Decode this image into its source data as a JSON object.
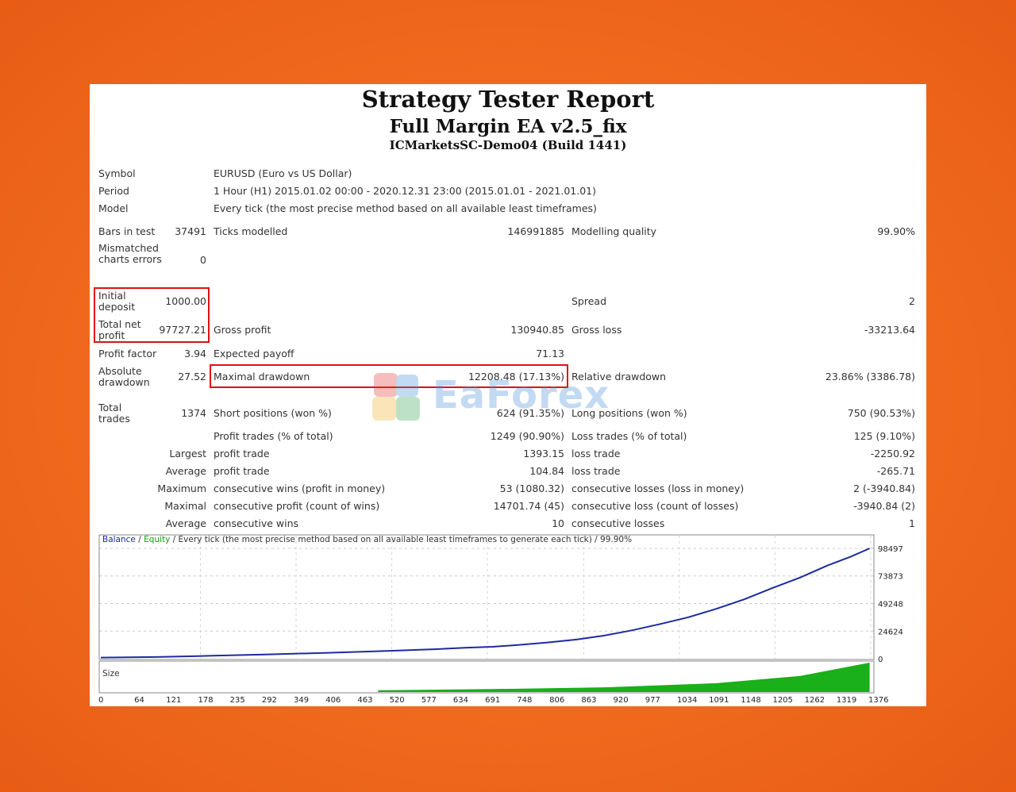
{
  "report": {
    "title": "Strategy Tester Report",
    "ea_name": "Full Margin EA v2.5_fix",
    "server": "ICMarketsSC-Demo04 (Build 1441)"
  },
  "info": {
    "symbol_label": "Symbol",
    "symbol_value": "EURUSD (Euro vs US Dollar)",
    "period_label": "Period",
    "period_value": "1 Hour (H1) 2015.01.02 00:00 - 2020.12.31 23:00 (2015.01.01 - 2021.01.01)",
    "model_label": "Model",
    "model_value": "Every tick (the most precise method based on all available least timeframes)"
  },
  "stats": {
    "bars_label": "Bars in test",
    "bars_value": "37491",
    "ticks_label": "Ticks modelled",
    "ticks_value": "146991885",
    "quality_label": "Modelling quality",
    "quality_value": "99.90%",
    "mismatched_label": "Mismatched charts errors",
    "mismatched_value": "0",
    "initial_label": "Initial deposit",
    "initial_value": "1000.00",
    "spread_label": "Spread",
    "spread_value": "2",
    "net_label": "Total net profit",
    "net_value": "97727.21",
    "gross_profit_label": "Gross profit",
    "gross_profit_value": "130940.85",
    "gross_loss_label": "Gross loss",
    "gross_loss_value": "-33213.64",
    "pf_label": "Profit factor",
    "pf_value": "3.94",
    "payoff_label": "Expected payoff",
    "payoff_value": "71.13",
    "abs_dd_label": "Absolute drawdown",
    "abs_dd_value": "27.52",
    "max_dd_label": "Maximal drawdown",
    "max_dd_value": "12208.48 (17.13%)",
    "rel_dd_label": "Relative drawdown",
    "rel_dd_value": "23.86% (3386.78)",
    "total_trades_label": "Total trades",
    "total_trades_value": "1374",
    "short_label": "Short positions (won %)",
    "short_value": "624 (91.35%)",
    "long_label": "Long positions (won %)",
    "long_value": "750 (90.53%)",
    "profit_trades_label": "Profit trades (% of total)",
    "profit_trades_value": "1249 (90.90%)",
    "loss_trades_label": "Loss trades (% of total)",
    "loss_trades_value": "125 (9.10%)",
    "largest_label": "Largest",
    "largest_profit_label": "profit trade",
    "largest_profit_value": "1393.15",
    "largest_loss_label": "loss trade",
    "largest_loss_value": "-2250.92",
    "average_label": "Average",
    "average_profit_label": "profit trade",
    "average_profit_value": "104.84",
    "average_loss_label": "loss trade",
    "average_loss_value": "-265.71",
    "maximum_label": "Maximum",
    "max_wins_label": "consecutive wins (profit in money)",
    "max_wins_value": "53 (1080.32)",
    "max_losses_label": "consecutive losses (loss in money)",
    "max_losses_value": "2 (-3940.84)",
    "maximal_label": "Maximal",
    "maximal_profit_label": "consecutive profit (count of wins)",
    "maximal_profit_value": "14701.74 (45)",
    "maximal_loss_label": "consecutive loss (count of losses)",
    "maximal_loss_value": "-3940.84 (2)",
    "average2_label": "Average",
    "avg_cons_wins_label": "consecutive wins",
    "avg_cons_wins_value": "10",
    "avg_cons_losses_label": "consecutive losses",
    "avg_cons_losses_value": "1"
  },
  "watermark": "EaForex",
  "chart": {
    "legend_balance": "Balance",
    "legend_sep1": " / ",
    "legend_equity": "Equity",
    "legend_rest": " / Every tick (the most precise method based on all available least timeframes to generate each tick) / 99.90%",
    "size_label": "Size",
    "colors": {
      "balance": "#1e2aa0",
      "equity": "#1a9a1a",
      "size": "#19b019"
    }
  },
  "chart_data": {
    "type": "line",
    "title": "",
    "xlabel": "",
    "ylabel": "",
    "x_ticks": [
      0,
      64,
      121,
      178,
      235,
      292,
      349,
      406,
      463,
      520,
      577,
      634,
      691,
      748,
      806,
      863,
      920,
      977,
      1034,
      1091,
      1148,
      1205,
      1262,
      1319,
      1376
    ],
    "y_ticks": [
      0,
      24624,
      49248,
      73873,
      98497
    ],
    "xlim": [
      0,
      1374
    ],
    "ylim": [
      0,
      98497
    ],
    "series": [
      {
        "name": "Balance",
        "x": [
          0,
          100,
          200,
          300,
          400,
          500,
          550,
          600,
          650,
          700,
          750,
          800,
          850,
          900,
          950,
          1000,
          1050,
          1100,
          1150,
          1200,
          1250,
          1300,
          1340,
          1374
        ],
        "y": [
          1000,
          1500,
          2600,
          3800,
          5200,
          6700,
          7600,
          8500,
          9800,
          10600,
          12400,
          14500,
          17100,
          20600,
          25400,
          31000,
          37000,
          44500,
          53000,
          63000,
          72500,
          83500,
          91000,
          98497
        ]
      }
    ],
    "size_series": {
      "name": "Size",
      "x": [
        0,
        495,
        496,
        700,
        900,
        1100,
        1250,
        1374
      ],
      "y": [
        0,
        0,
        0.06,
        0.1,
        0.16,
        0.3,
        0.55,
        1.0
      ]
    }
  }
}
